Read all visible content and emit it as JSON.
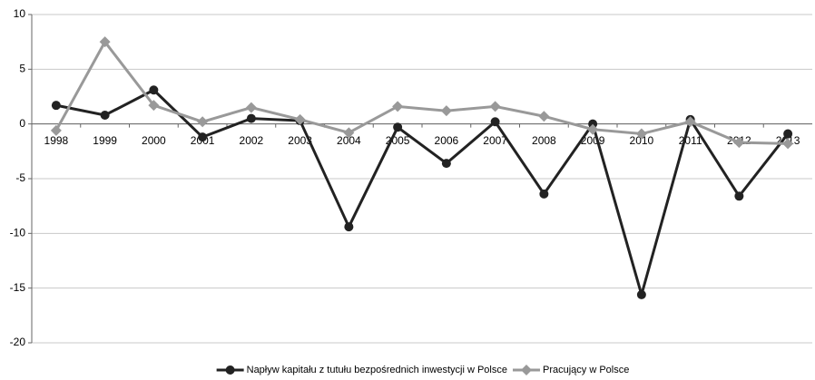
{
  "chart_data": {
    "type": "line",
    "categories": [
      "1998",
      "1999",
      "2000",
      "2001",
      "2002",
      "2003",
      "2004",
      "2005",
      "2006",
      "2007",
      "2008",
      "2009",
      "2010",
      "2011",
      "2012",
      "2013"
    ],
    "series": [
      {
        "name": "Napływ kapitału z tutułu bezpośrednich inwestycji w Polsce",
        "color": "#222222",
        "marker": "circle",
        "values": [
          1.7,
          0.8,
          3.1,
          -1.2,
          0.5,
          0.3,
          -9.4,
          -0.3,
          -3.6,
          0.2,
          -6.4,
          0,
          -15.6,
          0.4,
          -6.6,
          -0.9
        ]
      },
      {
        "name": "Pracujący w Polsce",
        "color": "#999999",
        "marker": "diamond",
        "values": [
          -0.6,
          7.5,
          1.7,
          0.2,
          1.5,
          0.4,
          -0.8,
          1.6,
          1.2,
          1.6,
          0.7,
          -0.5,
          -0.9,
          0.2,
          -1.7,
          -1.8
        ]
      }
    ],
    "ylim": [
      -20,
      10
    ],
    "yticks": [
      -20,
      -15,
      -10,
      -5,
      0,
      5,
      10
    ],
    "grid": true,
    "legend": "bottom"
  }
}
